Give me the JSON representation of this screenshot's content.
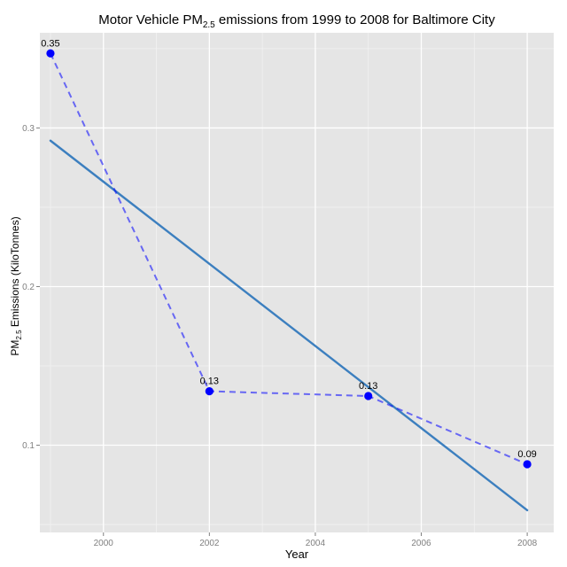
{
  "chart_data": {
    "type": "line",
    "title": {
      "prefix": "Motor Vehicle PM",
      "subscript": "2.5",
      "suffix": " emissions from 1999 to 2008 for Baltimore City"
    },
    "xlabel": "Year",
    "ylabel": {
      "prefix": "PM",
      "subscript": "2.5",
      "suffix": " Emissions (KiloTonnes)"
    },
    "xlim": [
      1998.8,
      2008.5
    ],
    "ylim": [
      0.045,
      0.36
    ],
    "x_ticks": [
      2000,
      2002,
      2004,
      2006,
      2008
    ],
    "y_ticks": [
      0.1,
      0.2,
      0.3
    ],
    "y_tick_labels": [
      "0.1",
      "0.2",
      "0.3"
    ],
    "grid": true,
    "series": [
      {
        "kind": "observed",
        "style": "dashed line with points",
        "color": "#0000ff",
        "x": [
          1999,
          2002,
          2005,
          2008
        ],
        "y": [
          0.347,
          0.134,
          0.131,
          0.088
        ],
        "labels": [
          "0.35",
          "0.13",
          "0.13",
          "0.09"
        ]
      },
      {
        "kind": "trend",
        "style": "solid linear fit",
        "color": "#3c7fbf",
        "x": [
          1999,
          2008
        ],
        "y": [
          0.292,
          0.059
        ]
      }
    ],
    "colors": {
      "panel": "#e5e5e5",
      "grid_major": "#ffffff",
      "grid_minor": "#f2f2f2",
      "tick_text": "#7f7f7f"
    }
  }
}
